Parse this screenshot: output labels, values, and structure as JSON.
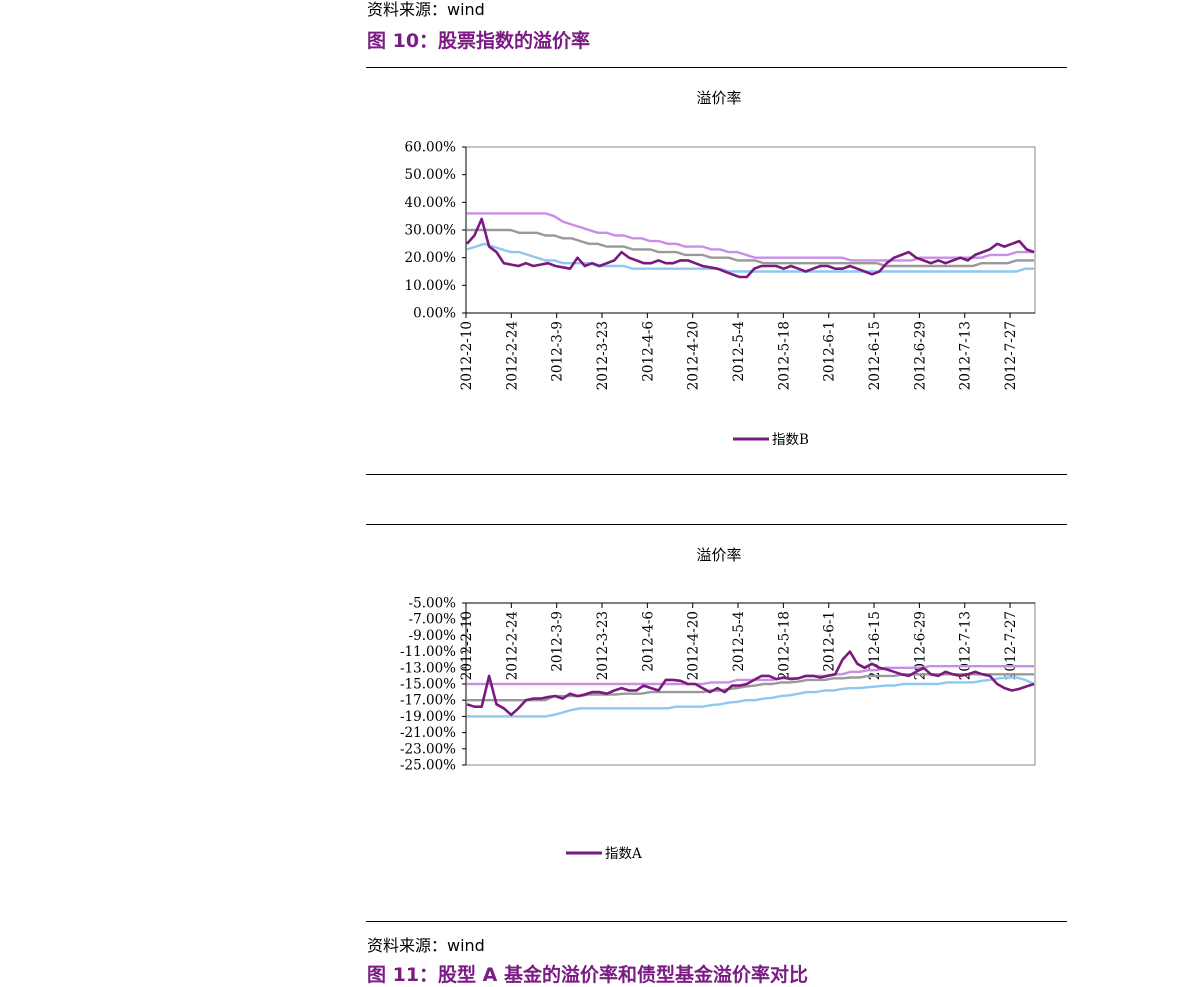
{
  "source_top": "资料来源：wind",
  "figure10_caption": "图 10：股票指数的溢价率",
  "source_bottom": "资料来源：wind",
  "figure11_caption": "图 11：股型 A 基金的溢价率和债型基金溢价率对比",
  "colors": {
    "caption": "#7a1c84",
    "primary": "#7b1a7e",
    "lavender": "#c98fe6",
    "gray": "#999999",
    "lightblue": "#8ec8f2"
  },
  "chart_data": [
    {
      "type": "line",
      "title": "溢价率",
      "x_labels": [
        "2012-2-10",
        "2012-2-24",
        "2012-3-9",
        "2012-3-23",
        "2012-4-6",
        "2012-4-20",
        "2012-5-4",
        "2012-5-18",
        "2012-6-1",
        "2012-6-15",
        "2012-6-29",
        "2012-7-13",
        "2012-7-27"
      ],
      "y_ticks": [
        "60.00%",
        "50.00%",
        "40.00%",
        "30.00%",
        "20.00%",
        "10.00%",
        "0.00%"
      ],
      "ylim": [
        0,
        60
      ],
      "legend": "指数B",
      "legend_placement": "bottom",
      "grid": false,
      "series": [
        {
          "name": "指数B",
          "color": "primary",
          "values": [
            25,
            28,
            34,
            24,
            22,
            18,
            17.5,
            17,
            18,
            17,
            17.5,
            18,
            17,
            16.5,
            16,
            20,
            17,
            18,
            17,
            18,
            19,
            22,
            20,
            19,
            18,
            18,
            19,
            18,
            18,
            19,
            19,
            18,
            17,
            16.5,
            16,
            15,
            14,
            13,
            13,
            16,
            17,
            17,
            17,
            16,
            17,
            16,
            15,
            16,
            17,
            17,
            16,
            16,
            17,
            16,
            15,
            14,
            15,
            18,
            20,
            21,
            22,
            20,
            19,
            18,
            19,
            18,
            19,
            20,
            19,
            21,
            22,
            23,
            25,
            24,
            25,
            26,
            23,
            22
          ]
        },
        {
          "name": "",
          "color": "lavender",
          "values": [
            36,
            36,
            36,
            36,
            36,
            36,
            36,
            36,
            36,
            36,
            35,
            33,
            32,
            31,
            30,
            29,
            29,
            28,
            28,
            27,
            27,
            26,
            26,
            25,
            25,
            24,
            24,
            24,
            23,
            23,
            22,
            22,
            21,
            20,
            20,
            20,
            20,
            20,
            20,
            20,
            20,
            20,
            20,
            20,
            19,
            19,
            19,
            19,
            19,
            19,
            19,
            19,
            20,
            20,
            20,
            20,
            20,
            20,
            20,
            20,
            21,
            21,
            21,
            22,
            22,
            22
          ]
        },
        {
          "name": "",
          "color": "gray",
          "values": [
            30,
            30,
            30,
            30,
            30,
            30,
            29,
            29,
            29,
            28,
            28,
            27,
            27,
            26,
            25,
            25,
            24,
            24,
            24,
            23,
            23,
            23,
            22,
            22,
            22,
            21,
            21,
            21,
            20,
            20,
            20,
            19,
            19,
            19,
            18,
            18,
            18,
            18,
            18,
            18,
            18,
            18,
            18,
            18,
            18,
            18,
            18,
            18,
            17,
            17,
            17,
            17,
            17,
            17,
            17,
            17,
            17,
            17,
            17,
            18,
            18,
            18,
            18,
            19,
            19,
            19
          ]
        },
        {
          "name": "",
          "color": "lightblue",
          "values": [
            23,
            24,
            25,
            24,
            23,
            22,
            22,
            21,
            20,
            19,
            19,
            18,
            18,
            18,
            18,
            17,
            17,
            17,
            17,
            16,
            16,
            16,
            16,
            16,
            16,
            16,
            16,
            16,
            16,
            16,
            15,
            15,
            15,
            15,
            15,
            15,
            15,
            15,
            15,
            15,
            15,
            15,
            15,
            15,
            15,
            15,
            15,
            15,
            15,
            15,
            15,
            15,
            15,
            15,
            15,
            15,
            15,
            15,
            15,
            15,
            15,
            15,
            15,
            15,
            16,
            16
          ]
        }
      ]
    },
    {
      "type": "line",
      "title": "溢价率",
      "x_labels": [
        "2012-2-10",
        "2012-2-24",
        "2012-3-9",
        "2012-3-23",
        "2012-4-6",
        "2012-4-20",
        "2012-5-4",
        "2012-5-18",
        "2012-6-1",
        "2012-6-15",
        "2012-6-29",
        "2012-7-13",
        "2012-7-27"
      ],
      "y_ticks": [
        "-5.00%",
        "-7.00%",
        "-9.00%",
        "-11.00%",
        "-13.00%",
        "-15.00%",
        "-17.00%",
        "-19.00%",
        "-21.00%",
        "-23.00%",
        "-25.00%"
      ],
      "ylim": [
        -25,
        -5
      ],
      "legend": "指数A",
      "legend_placement": "bottom",
      "grid": false,
      "series": [
        {
          "name": "指数A",
          "color": "primary",
          "values": [
            -17.5,
            -17.8,
            -17.8,
            -14,
            -17.5,
            -18,
            -18.8,
            -18,
            -17,
            -16.8,
            -16.8,
            -16.6,
            -16.5,
            -16.8,
            -16.2,
            -16.5,
            -16.3,
            -16,
            -16,
            -16.2,
            -15.8,
            -15.5,
            -15.8,
            -15.8,
            -15.2,
            -15.5,
            -15.8,
            -14.5,
            -14.5,
            -14.6,
            -15,
            -15,
            -15.5,
            -16,
            -15.5,
            -16,
            -15.2,
            -15.2,
            -15,
            -14.5,
            -14,
            -14,
            -14.4,
            -14.2,
            -14.4,
            -14.3,
            -14,
            -14,
            -14.2,
            -14,
            -13.8,
            -12,
            -11,
            -12.5,
            -13,
            -12.5,
            -13,
            -13.2,
            -13.5,
            -13.8,
            -14,
            -13.5,
            -13,
            -13.8,
            -14,
            -13.5,
            -13.8,
            -14,
            -13.8,
            -13.5,
            -13.8,
            -14,
            -15,
            -15.5,
            -15.8,
            -15.6,
            -15.3,
            -15
          ]
        },
        {
          "name": "",
          "color": "lavender",
          "values": [
            -15,
            -15,
            -15,
            -15,
            -15,
            -15,
            -15,
            -15,
            -15,
            -15,
            -15,
            -15,
            -15,
            -15,
            -15,
            -15,
            -15,
            -15,
            -15,
            -15,
            -15,
            -15,
            -15,
            -15,
            -15,
            -15,
            -15,
            -15,
            -14.8,
            -14.8,
            -14.8,
            -14.5,
            -14.5,
            -14.5,
            -14.5,
            -14.5,
            -14.3,
            -14.3,
            -14.3,
            -14,
            -14,
            -14,
            -13.8,
            -13.8,
            -13.5,
            -13.5,
            -13.3,
            -13.3,
            -13,
            -13,
            -13,
            -13,
            -13,
            -12.8,
            -12.8,
            -12.8,
            -12.8,
            -12.8,
            -12.8,
            -12.8,
            -12.8,
            -12.8,
            -12.8,
            -12.8,
            -12.8,
            -12.8
          ]
        },
        {
          "name": "",
          "color": "gray",
          "values": [
            -17,
            -17,
            -17,
            -17,
            -17,
            -17,
            -17,
            -17,
            -17,
            -17,
            -16.5,
            -16.5,
            -16.5,
            -16.5,
            -16.3,
            -16.3,
            -16.3,
            -16.3,
            -16.2,
            -16.2,
            -16.2,
            -16,
            -16,
            -16,
            -16,
            -16,
            -16,
            -16,
            -15.8,
            -15.8,
            -15.6,
            -15.5,
            -15.3,
            -15.2,
            -15,
            -15,
            -14.8,
            -14.8,
            -14.7,
            -14.5,
            -14.5,
            -14.5,
            -14.3,
            -14.3,
            -14.2,
            -14.2,
            -14,
            -14,
            -14,
            -14,
            -13.8,
            -13.8,
            -13.8,
            -13.8,
            -13.8,
            -13.8,
            -13.8,
            -13.8,
            -13.8,
            -13.8,
            -13.8,
            -13.8,
            -13.8,
            -13.8,
            -13.8,
            -13.8
          ]
        },
        {
          "name": "",
          "color": "lightblue",
          "values": [
            -19,
            -19,
            -19,
            -19,
            -19,
            -19,
            -19,
            -19,
            -19,
            -19,
            -18.8,
            -18.5,
            -18.2,
            -18,
            -18,
            -18,
            -18,
            -18,
            -18,
            -18,
            -18,
            -18,
            -18,
            -18,
            -17.8,
            -17.8,
            -17.8,
            -17.8,
            -17.6,
            -17.5,
            -17.3,
            -17.2,
            -17,
            -17,
            -16.8,
            -16.7,
            -16.5,
            -16.4,
            -16.2,
            -16,
            -16,
            -15.8,
            -15.8,
            -15.6,
            -15.5,
            -15.5,
            -15.4,
            -15.3,
            -15.2,
            -15.2,
            -15,
            -15,
            -15,
            -15,
            -15,
            -14.8,
            -14.8,
            -14.8,
            -14.8,
            -14.6,
            -14.5,
            -14.3,
            -14.2,
            -14.2,
            -14.5,
            -15
          ]
        }
      ]
    }
  ]
}
